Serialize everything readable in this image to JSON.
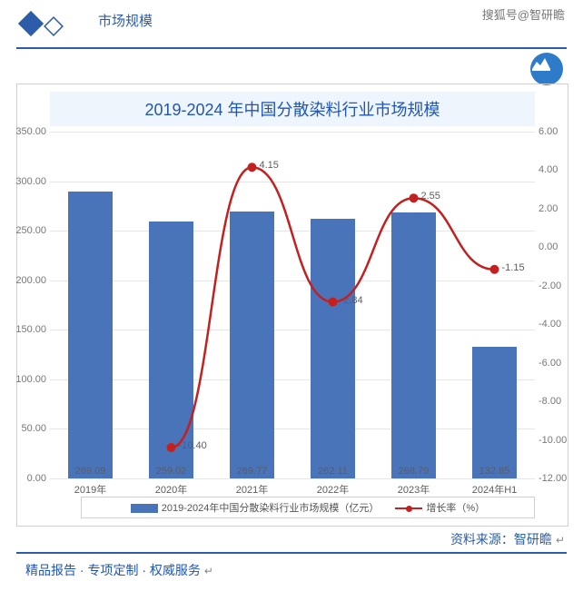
{
  "header": {
    "section_title": "市场规模",
    "sohu_watermark": "搜狐号@智研瞻",
    "round_logo_bg": "#2d7bc9"
  },
  "chart": {
    "type": "bar+line",
    "title": "2019-2024 年中国分散染料行业市场规模",
    "categories": [
      "2019年",
      "2020年",
      "2021年",
      "2022年",
      "2023年",
      "2024年H1"
    ],
    "bars": {
      "values": [
        289.09,
        259.02,
        269.77,
        262.11,
        268.79,
        132.85
      ],
      "labels": [
        "289.09",
        "259.02",
        "269.77",
        "262.11",
        "268.79",
        "132.85"
      ],
      "color": "#4a74ba",
      "legend": "2019-2024年中国分散染料行业市场规模（亿元）",
      "y_axis": {
        "min": 0,
        "max": 350,
        "step": 50
      }
    },
    "line": {
      "values": [
        null,
        -10.4,
        4.15,
        -2.84,
        2.55,
        -1.15
      ],
      "labels": [
        null,
        "-10.40",
        "4.15",
        "-2.84",
        "2.55",
        "-1.15"
      ],
      "color": "#c32020",
      "legend": "增长率（%）",
      "y_axis": {
        "min": -12,
        "max": 6,
        "step": 2
      }
    },
    "grid_color": "#e6e6e6",
    "background": "#ffffff",
    "title_bg": "#eef5fd",
    "title_color": "#2056b4",
    "border_color": "#cfcfcf",
    "label_color": "#5c5c5c",
    "label_fontsize": 11
  },
  "footer": {
    "source": "资料来源：智研瞻",
    "tagline": "精品报告 ·   专项定制 · 权威服务"
  }
}
